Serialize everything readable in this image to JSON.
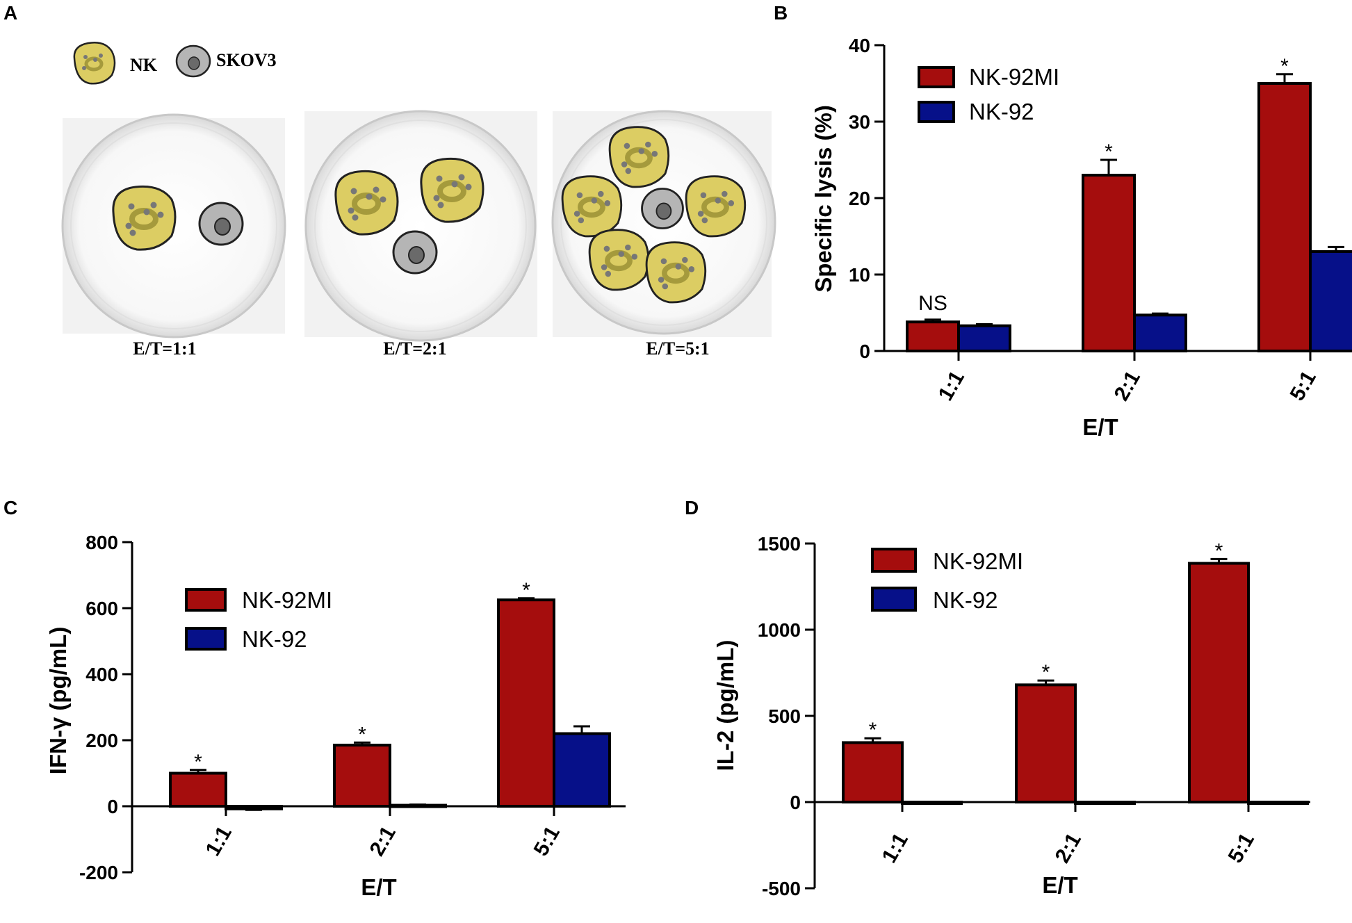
{
  "colors": {
    "nk92mi": "#a50d0d",
    "nk92": "#061089",
    "nk_cell": "#dccd63",
    "skov3_cell": "#b5b5b5"
  },
  "panel_a": {
    "letter": "A",
    "legend_nk": "NK",
    "legend_skov3": "SKOV3",
    "dishes": [
      {
        "label": "E/T=1:1"
      },
      {
        "label": "E/T=2:1"
      },
      {
        "label": "E/T=5:1"
      }
    ]
  },
  "chart_data": [
    {
      "id": "B",
      "panel": "B",
      "type": "bar",
      "categories": [
        "1:1",
        "2:1",
        "5:1"
      ],
      "series": [
        {
          "name": "NK-92MI",
          "values": [
            3.8,
            23.0,
            35.0
          ],
          "errors": [
            0.3,
            2.0,
            1.2
          ]
        },
        {
          "name": "NK-92",
          "values": [
            3.3,
            4.7,
            13.0
          ],
          "errors": [
            0.2,
            0.2,
            0.6
          ]
        }
      ],
      "annotations": [
        "NS",
        "*",
        "*"
      ],
      "xlabel": "E/T",
      "ylabel": "Specific lysis (%)",
      "ylim": [
        0,
        40
      ],
      "yticks": [
        0,
        10,
        20,
        30,
        40
      ],
      "legend_position": "top-left"
    },
    {
      "id": "C",
      "panel": "C",
      "type": "bar",
      "categories": [
        "1:1",
        "2:1",
        "5:1"
      ],
      "series": [
        {
          "name": "NK-92MI",
          "values": [
            100,
            185,
            625
          ],
          "errors": [
            10,
            8,
            5
          ]
        },
        {
          "name": "NK-92",
          "values": [
            -8,
            3,
            220
          ],
          "errors": [
            3,
            2,
            22
          ]
        }
      ],
      "annotations": [
        "*",
        "*",
        "*"
      ],
      "xlabel": "E/T",
      "ylabel": "IFN-γ (pg/mL)",
      "ylim": [
        -200,
        800
      ],
      "yticks": [
        -200,
        0,
        200,
        400,
        600,
        800
      ],
      "legend_position": "top-left"
    },
    {
      "id": "D",
      "panel": "D",
      "type": "bar",
      "categories": [
        "1:1",
        "2:1",
        "5:1"
      ],
      "series": [
        {
          "name": "NK-92MI",
          "values": [
            345,
            680,
            1385
          ],
          "errors": [
            25,
            25,
            25
          ]
        },
        {
          "name": "NK-92",
          "values": [
            -5,
            -5,
            -5
          ],
          "errors": [
            3,
            3,
            3
          ]
        }
      ],
      "annotations": [
        "*",
        "*",
        "*"
      ],
      "xlabel": "E/T",
      "ylabel": "IL-2 (pg/mL)",
      "ylim": [
        -500,
        1500
      ],
      "yticks": [
        -500,
        0,
        500,
        1000,
        1500
      ],
      "legend_position": "top-left"
    }
  ]
}
